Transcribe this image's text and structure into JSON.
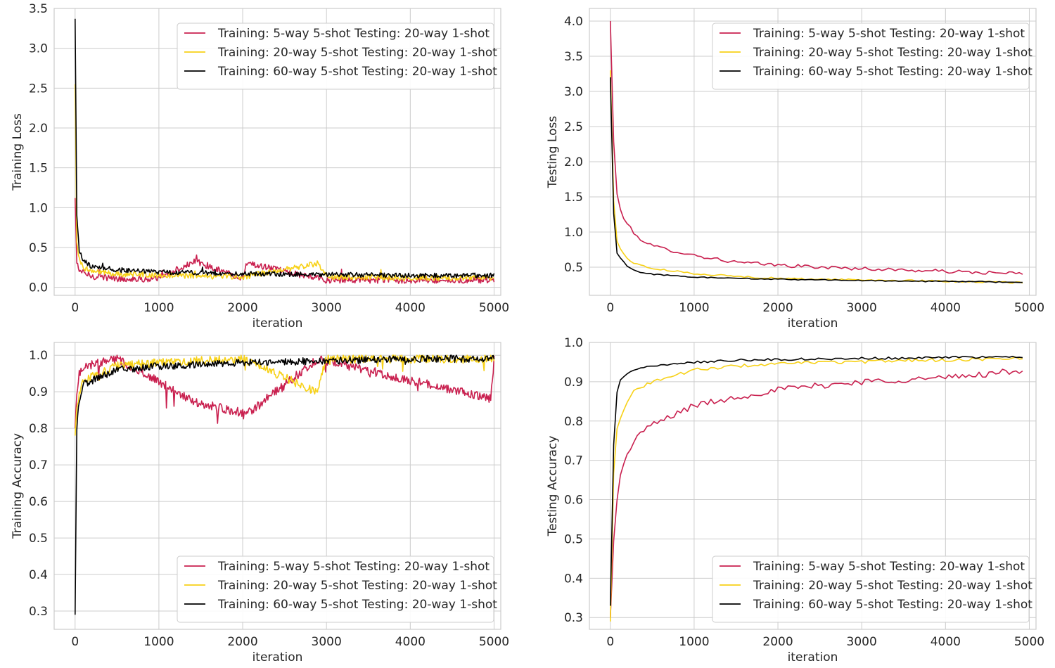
{
  "colors": {
    "series": [
      "#c9204f",
      "#f7d117",
      "#000000"
    ],
    "grid": "#cccccc",
    "axes_frame": "#cccccc",
    "background": "#ffffff",
    "text": "#262626"
  },
  "chart_data": [
    {
      "type": "line",
      "position": "top-left",
      "xlabel": "iteration",
      "ylabel": "Training Loss",
      "xlim": [
        -250,
        5080
      ],
      "ylim": [
        -0.1,
        3.5
      ],
      "xticks": [
        0,
        1000,
        2000,
        3000,
        4000,
        5000
      ],
      "yticks": [
        0.0,
        0.5,
        1.0,
        1.5,
        2.0,
        2.5,
        3.0,
        3.5
      ],
      "ytick_labels": [
        "0.0",
        "0.5",
        "1.0",
        "1.5",
        "2.0",
        "2.5",
        "3.0",
        "3.5"
      ],
      "grid": true,
      "legend": "top-right",
      "series": [
        {
          "name": "Training: 5-way 5-shot Testing: 20-way 1-shot",
          "start": 1.12,
          "end": 0.09,
          "tau": 45,
          "noise": 0.04,
          "spike_prob": 0.018,
          "spike": 0.15,
          "x": [
            0,
            20,
            50,
            100,
            200,
            500,
            1000,
            1440,
            2000,
            2050,
            3000,
            4000,
            5000
          ],
          "values": [
            1.12,
            0.3,
            0.22,
            0.18,
            0.14,
            0.11,
            0.1,
            0.33,
            0.1,
            0.3,
            0.09,
            0.09,
            0.09
          ]
        },
        {
          "name": "Training: 20-way 5-shot Testing: 20-way 1-shot",
          "start": 2.55,
          "end": 0.12,
          "tau": 60,
          "noise": 0.035,
          "spike_prob": 0.01,
          "spike": 0.12,
          "x": [
            0,
            20,
            50,
            100,
            200,
            500,
            1000,
            2000,
            2900,
            3000,
            4000,
            5000
          ],
          "values": [
            2.55,
            0.6,
            0.35,
            0.25,
            0.2,
            0.17,
            0.15,
            0.13,
            0.3,
            0.13,
            0.12,
            0.12
          ]
        },
        {
          "name": "Training: 60-way 5-shot Testing: 20-way 1-shot",
          "start": 3.37,
          "end": 0.15,
          "tau": 70,
          "noise": 0.03,
          "spike_prob": 0.005,
          "spike": 0.08,
          "x": [
            0,
            20,
            50,
            100,
            200,
            500,
            1000,
            2000,
            3000,
            4000,
            5000
          ],
          "values": [
            3.37,
            0.9,
            0.45,
            0.33,
            0.26,
            0.22,
            0.19,
            0.17,
            0.16,
            0.15,
            0.15
          ]
        }
      ]
    },
    {
      "type": "line",
      "position": "top-right",
      "xlabel": "iteration",
      "ylabel": "Testing Loss",
      "xlim": [
        -250,
        5080
      ],
      "ylim": [
        0.1,
        4.18
      ],
      "xticks": [
        0,
        1000,
        2000,
        3000,
        4000,
        5000
      ],
      "yticks": [
        0.5,
        1.0,
        1.5,
        2.0,
        2.5,
        3.0,
        3.5,
        4.0
      ],
      "ytick_labels": [
        "0.5",
        "1.0",
        "1.5",
        "2.0",
        "2.5",
        "3.0",
        "3.5",
        "4.0"
      ],
      "grid": true,
      "legend": "top-right",
      "series": [
        {
          "name": "Training: 5-way 5-shot Testing: 20-way 1-shot",
          "start": 4.0,
          "end": 0.41,
          "tau": 650,
          "noise": 0.025,
          "x": [
            0,
            50,
            100,
            200,
            300,
            500,
            1000,
            1500,
            2000,
            2500,
            3000,
            3500,
            4000,
            4500,
            4950
          ],
          "values": [
            4.0,
            1.85,
            1.35,
            1.12,
            0.95,
            0.8,
            0.67,
            0.57,
            0.53,
            0.5,
            0.48,
            0.46,
            0.44,
            0.42,
            0.41
          ]
        },
        {
          "name": "Training: 20-way 5-shot Testing: 20-way 1-shot",
          "start": 3.3,
          "end": 0.28,
          "tau": 450,
          "noise": 0.012,
          "x": [
            0,
            50,
            100,
            200,
            300,
            500,
            1000,
            1500,
            2000,
            2500,
            3000,
            3500,
            4000,
            4500,
            4950
          ],
          "values": [
            3.3,
            0.98,
            0.8,
            0.62,
            0.55,
            0.48,
            0.41,
            0.37,
            0.34,
            0.33,
            0.32,
            0.31,
            0.3,
            0.29,
            0.28
          ]
        },
        {
          "name": "Training: 60-way 5-shot Testing: 20-way 1-shot",
          "start": 3.2,
          "end": 0.29,
          "tau": 250,
          "noise": 0.008,
          "x": [
            0,
            50,
            100,
            200,
            300,
            500,
            1000,
            1500,
            2000,
            2500,
            3000,
            3500,
            4000,
            4500,
            4950
          ],
          "values": [
            3.2,
            0.78,
            0.65,
            0.52,
            0.44,
            0.4,
            0.36,
            0.34,
            0.33,
            0.32,
            0.31,
            0.3,
            0.3,
            0.29,
            0.29
          ]
        }
      ]
    },
    {
      "type": "line",
      "position": "bottom-left",
      "xlabel": "iteration",
      "ylabel": "Training Accuracy",
      "xlim": [
        -250,
        5080
      ],
      "ylim": [
        0.25,
        1.035
      ],
      "xticks": [
        0,
        1000,
        2000,
        3000,
        4000,
        5000
      ],
      "yticks": [
        0.3,
        0.4,
        0.5,
        0.6,
        0.7,
        0.8,
        0.9,
        1.0
      ],
      "ytick_labels": [
        "0.3",
        "0.4",
        "0.5",
        "0.6",
        "0.7",
        "0.8",
        "0.9",
        "1.0"
      ],
      "grid": true,
      "legend": "bottom-right",
      "series": [
        {
          "name": "Training: 5-way 5-shot Testing: 20-way 1-shot",
          "start": 0.8,
          "end": 0.995,
          "tau": 60,
          "noise": 0.012,
          "spike_prob": 0.03,
          "spike": -0.05,
          "cap": 1.0,
          "x": [
            0,
            20,
            50,
            100,
            500,
            1450,
            2050,
            2900,
            4960,
            5000
          ],
          "values": [
            0.8,
            0.9,
            0.95,
            0.97,
            0.99,
            0.87,
            0.84,
            0.99,
            0.88,
            0.99
          ]
        },
        {
          "name": "Training: 20-way 5-shot Testing: 20-way 1-shot",
          "start": 0.78,
          "end": 0.99,
          "tau": 120,
          "noise": 0.012,
          "spike_prob": 0.02,
          "spike": -0.04,
          "cap": 1.0,
          "x": [
            0,
            20,
            50,
            100,
            500,
            1000,
            2000,
            2880,
            3000,
            5000
          ],
          "values": [
            0.78,
            0.85,
            0.9,
            0.93,
            0.97,
            0.98,
            0.99,
            0.9,
            0.99,
            0.99
          ]
        },
        {
          "name": "Training: 60-way 5-shot Testing: 20-way 1-shot",
          "start": 0.29,
          "end": 0.99,
          "tau": 250,
          "noise": 0.01,
          "spike_prob": 0.01,
          "spike": -0.02,
          "cap": 1.0,
          "x": [
            0,
            20,
            50,
            100,
            500,
            1000,
            2000,
            3000,
            4000,
            5000
          ],
          "values": [
            0.29,
            0.8,
            0.88,
            0.92,
            0.96,
            0.97,
            0.98,
            0.985,
            0.99,
            0.99
          ]
        }
      ]
    },
    {
      "type": "line",
      "position": "bottom-right",
      "xlabel": "iteration",
      "ylabel": "Testing Accuracy",
      "xlim": [
        -250,
        5080
      ],
      "ylim": [
        0.27,
        1.0
      ],
      "xticks": [
        0,
        1000,
        2000,
        3000,
        4000,
        5000
      ],
      "yticks": [
        0.3,
        0.4,
        0.5,
        0.6,
        0.7,
        0.8,
        0.9,
        1.0
      ],
      "ytick_labels": [
        "0.3",
        "0.4",
        "0.5",
        "0.6",
        "0.7",
        "0.8",
        "0.9",
        "1.0"
      ],
      "grid": true,
      "legend": "bottom-right",
      "series": [
        {
          "name": "Training: 5-way 5-shot Testing: 20-way 1-shot",
          "start": 0.3,
          "end": 0.925,
          "tau": 800,
          "noise": 0.008,
          "x": [
            0,
            50,
            100,
            200,
            300,
            500,
            1000,
            1500,
            2000,
            2500,
            3000,
            3500,
            4000,
            4500,
            4950
          ],
          "values": [
            0.3,
            0.54,
            0.65,
            0.71,
            0.76,
            0.79,
            0.84,
            0.86,
            0.88,
            0.89,
            0.9,
            0.905,
            0.91,
            0.92,
            0.93
          ]
        },
        {
          "name": "Training: 20-way 5-shot Testing: 20-way 1-shot",
          "start": 0.29,
          "end": 0.96,
          "tau": 380,
          "noise": 0.004,
          "x": [
            0,
            50,
            100,
            200,
            300,
            500,
            1000,
            1500,
            2000,
            2500,
            3000,
            3500,
            4000,
            4500,
            4950
          ],
          "values": [
            0.29,
            0.76,
            0.8,
            0.85,
            0.88,
            0.9,
            0.93,
            0.94,
            0.945,
            0.95,
            0.95,
            0.955,
            0.955,
            0.958,
            0.96
          ]
        },
        {
          "name": "Training: 60-way 5-shot Testing: 20-way 1-shot",
          "start": 0.33,
          "end": 0.963,
          "tau": 150,
          "noise": 0.003,
          "x": [
            0,
            50,
            100,
            200,
            300,
            500,
            1000,
            1500,
            2000,
            2500,
            3000,
            3500,
            4000,
            4500,
            4950
          ],
          "values": [
            0.33,
            0.84,
            0.9,
            0.92,
            0.93,
            0.94,
            0.95,
            0.955,
            0.957,
            0.958,
            0.96,
            0.96,
            0.962,
            0.962,
            0.963
          ]
        }
      ]
    }
  ]
}
